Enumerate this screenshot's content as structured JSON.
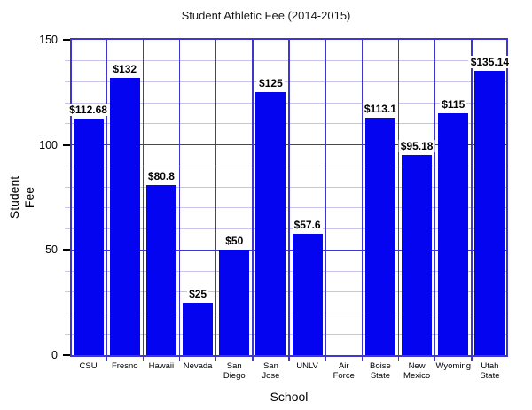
{
  "title": "Student Athletic Fee (2014-2015)",
  "chart_data": {
    "type": "bar",
    "title": "Student Athletic Fee (2014-2015)",
    "xlabel": "School",
    "ylabel": "Student Fee",
    "ylabel_lines": [
      "Student",
      "Fee"
    ],
    "categories": [
      "CSU",
      "Fresno",
      "Hawaii",
      "Nevada",
      "San Diego",
      "San Jose",
      "UNLV",
      "Air Force",
      "Boise State",
      "New Mexico",
      "Wyoming",
      "Utah State"
    ],
    "values": [
      112.68,
      132,
      80.8,
      25,
      50,
      125,
      57.6,
      null,
      113.1,
      95.18,
      115,
      135.14
    ],
    "bar_labels": [
      "$112.68",
      "$132",
      "$80.8",
      "$25",
      "$50",
      "$125",
      "$57.6",
      "",
      "$113.1",
      "$95.18",
      "$115",
      "$135.14"
    ],
    "ylim": [
      0,
      150
    ],
    "yticks_major": [
      0,
      50,
      100,
      150
    ],
    "ytick_labels": [
      "0",
      "50",
      "100",
      "150"
    ],
    "ytick_minor_step": 10,
    "grid": true,
    "legend": "none",
    "colors": {
      "bar": "#0404f0",
      "major_grid": "#3f36cf",
      "minor_grid": "#c9c3ec",
      "text": "#000000",
      "label_bg": "#ffffff"
    }
  }
}
